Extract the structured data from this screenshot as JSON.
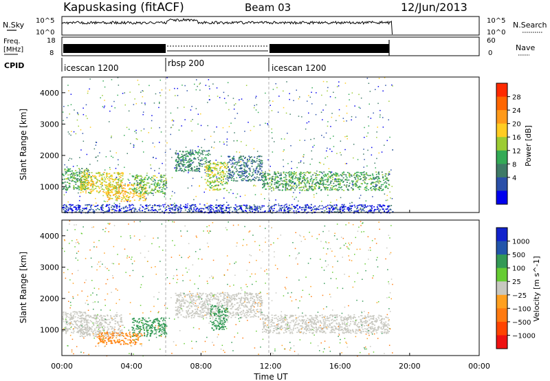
{
  "header": {
    "station": "Kapuskasing (fitACF)",
    "beam": "Beam 03",
    "date": "12/Jun/2013"
  },
  "noise_panel": {
    "left_label": "N.Sky",
    "right_label": "N.Search",
    "left_ticks": [
      "10^5",
      "10^0"
    ],
    "right_ticks": [
      "10^5",
      "10^0"
    ]
  },
  "freq_panel": {
    "left_label_1": "Freq.",
    "left_label_2": "[MHz]",
    "right_label": "Nave",
    "left_ticks": [
      "18",
      "8"
    ],
    "right_ticks": [
      "60",
      "0"
    ]
  },
  "cpid": {
    "label": "CPID",
    "segments": [
      {
        "name": "icescan 1200",
        "start": 0,
        "end": 6
      },
      {
        "name": "rbsp 200",
        "start": 6,
        "end": 12
      },
      {
        "name": "icescan 1200",
        "start": 12,
        "end": 19
      }
    ]
  },
  "power_colorbar": {
    "label": "Power [dB]",
    "ticks": [
      "28",
      "24",
      "20",
      "16",
      "12",
      "8",
      "4"
    ],
    "colors": [
      "#ff2a00",
      "#ff6600",
      "#ff9a1a",
      "#ffcc22",
      "#9ccc33",
      "#33aa55",
      "#3e7a66",
      "#2a4fa8",
      "#0000ee"
    ]
  },
  "velocity_colorbar": {
    "label": "Velocity [m s^-1]",
    "ticks": [
      "1000",
      "500",
      "100",
      "25",
      "−25",
      "−100",
      "−500",
      "−1000"
    ],
    "colors": [
      "#1122cc",
      "#2255aa",
      "#339955",
      "#66cc33",
      "#c8c8c0",
      "#ffa020",
      "#ff7a10",
      "#ff4400",
      "#ee1111"
    ]
  },
  "chart_data": [
    {
      "type": "heatmap",
      "title": "Power",
      "xlabel": "Time UT",
      "ylabel": "Slant Range [km]",
      "x_ticks": [
        "00:00",
        "04:00",
        "08:00",
        "12:00",
        "16:00",
        "20:00",
        "00:00"
      ],
      "y_ticks": [
        "1000",
        "2000",
        "3000",
        "4000"
      ],
      "xlim": [
        0,
        24
      ],
      "ylim": [
        180,
        4500
      ],
      "data_end_hour": 19,
      "bands": [
        {
          "t0": 0.0,
          "t1": 1.5,
          "r0": 900,
          "r1": 1600,
          "value": 12
        },
        {
          "t0": 1.0,
          "t1": 3.5,
          "r0": 800,
          "r1": 1500,
          "value": 18
        },
        {
          "t0": 2.5,
          "t1": 4.8,
          "r0": 550,
          "r1": 1100,
          "value": 20
        },
        {
          "t0": 4.0,
          "t1": 6.0,
          "r0": 800,
          "r1": 1400,
          "value": 14
        },
        {
          "t0": 6.5,
          "t1": 8.5,
          "r0": 1500,
          "r1": 2200,
          "value": 10
        },
        {
          "t0": 8.2,
          "t1": 9.5,
          "r0": 900,
          "r1": 1800,
          "value": 16
        },
        {
          "t0": 9.5,
          "t1": 11.5,
          "r0": 1200,
          "r1": 2000,
          "value": 8
        },
        {
          "t0": 11.5,
          "t1": 18.8,
          "r0": 900,
          "r1": 1500,
          "value": 12
        },
        {
          "t0": 0.0,
          "t1": 19.0,
          "r0": 180,
          "r1": 450,
          "value": 4
        }
      ]
    },
    {
      "type": "heatmap",
      "title": "Velocity",
      "xlabel": "Time UT",
      "ylabel": "Slant Range [km]",
      "x_ticks": [
        "00:00",
        "04:00",
        "08:00",
        "12:00",
        "16:00",
        "20:00",
        "00:00"
      ],
      "y_ticks": [
        "1000",
        "2000",
        "3000",
        "4000"
      ],
      "xlim": [
        0,
        24
      ],
      "ylim": [
        180,
        4500
      ],
      "data_end_hour": 19,
      "bands": [
        {
          "t0": 0.0,
          "t1": 1.5,
          "r0": 900,
          "r1": 1600,
          "value": 0
        },
        {
          "t0": 1.0,
          "t1": 3.5,
          "r0": 800,
          "r1": 1500,
          "value": 0
        },
        {
          "t0": 2.0,
          "t1": 4.6,
          "r0": 550,
          "r1": 950,
          "value": -100
        },
        {
          "t0": 4.0,
          "t1": 6.0,
          "r0": 800,
          "r1": 1400,
          "value": 300
        },
        {
          "t0": 6.5,
          "t1": 11.5,
          "r0": 1400,
          "r1": 2200,
          "value": 0
        },
        {
          "t0": 8.5,
          "t1": 9.5,
          "r0": 1000,
          "r1": 1800,
          "value": 300
        },
        {
          "t0": 11.5,
          "t1": 18.8,
          "r0": 900,
          "r1": 1500,
          "value": 0
        }
      ]
    }
  ]
}
